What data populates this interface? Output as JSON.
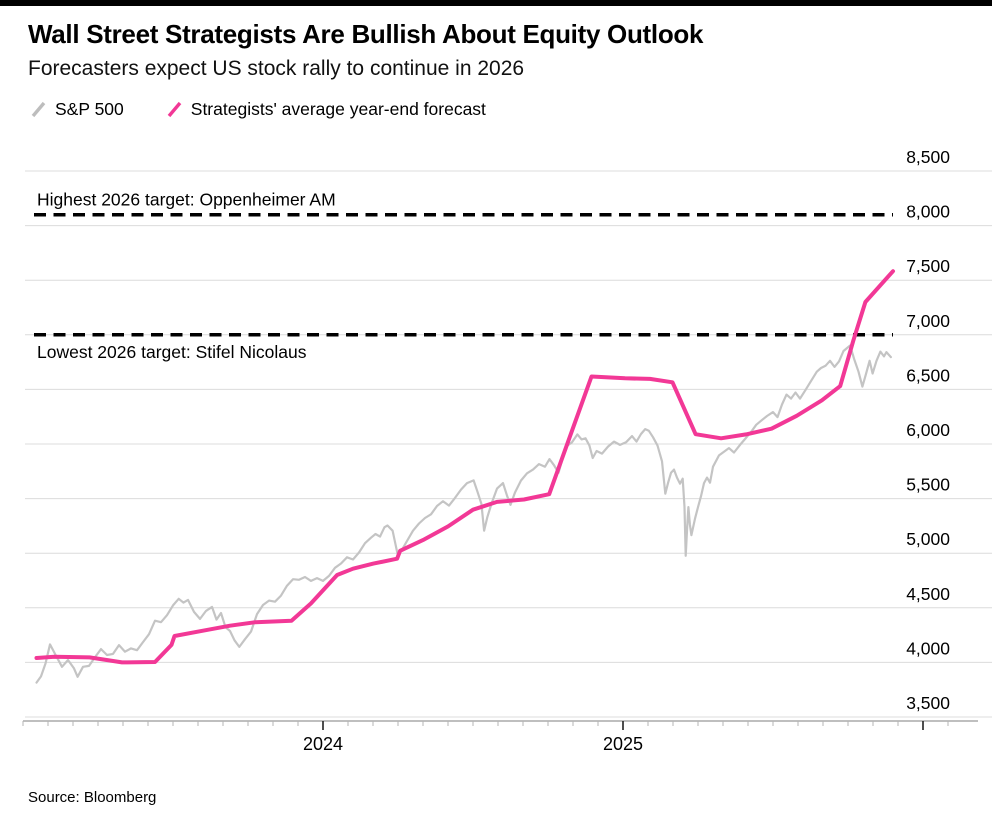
{
  "header": {
    "title": "Wall Street Strategists Are Bullish About Equity Outlook",
    "subtitle": "Forecasters expect US stock rally to continue in 2026"
  },
  "legend": [
    {
      "label": "S&P 500",
      "color": "#bdbdbd"
    },
    {
      "label": "Strategists' average year-end forecast",
      "color": "#f23896"
    }
  ],
  "source": "Source: Bloomberg",
  "colors": {
    "background": "#ffffff",
    "grid": "#dcdcdc",
    "axis": "#999999",
    "minor_tick": "#b5b5b5",
    "major_tick": "#222222",
    "annotation_line": "#000000",
    "sp500_line": "#c4c4c4",
    "forecast_line": "#f23896",
    "top_rule": "#000000"
  },
  "chart_data": {
    "type": "line",
    "title": "Wall Street Strategists Are Bullish About Equity Outlook",
    "subtitle": "Forecasters expect US stock rally to continue in 2026",
    "grid": true,
    "legend_position": "top-left",
    "y_axis": {
      "side": "right",
      "min": 3500,
      "max": 8500,
      "step": 500,
      "tick_labels": [
        "3,500",
        "4,000",
        "4,500",
        "5,000",
        "5,500",
        "6,000",
        "6,500",
        "7,000",
        "7,500",
        "8,000",
        "8,500"
      ]
    },
    "x_axis": {
      "unit": "decimal_year",
      "start": 2023.045,
      "end": 2025.9,
      "minor_tick": "monthly",
      "ticks": [
        {
          "year": 2024,
          "label": "2024"
        },
        {
          "year": 2025,
          "label": "2025"
        }
      ]
    },
    "annotations": [
      {
        "label": "Highest 2026 target: Oppenheimer AM",
        "value": 8100,
        "style": "dashed",
        "label_side": "above"
      },
      {
        "label": "Lowest 2026 target: Stifel Nicolaus",
        "value": 7000,
        "style": "dashed",
        "label_side": "below"
      }
    ],
    "series": [
      {
        "name": "S&P 500",
        "color": "#c4c4c4",
        "width": 2.2,
        "points": [
          [
            2023.045,
            3815
          ],
          [
            2023.06,
            3872
          ],
          [
            2023.075,
            3990
          ],
          [
            2023.09,
            4165
          ],
          [
            2023.11,
            4060
          ],
          [
            2023.13,
            3960
          ],
          [
            2023.15,
            4022
          ],
          [
            2023.17,
            3945
          ],
          [
            2023.182,
            3868
          ],
          [
            2023.2,
            3960
          ],
          [
            2023.22,
            3968
          ],
          [
            2023.24,
            4048
          ],
          [
            2023.26,
            4122
          ],
          [
            2023.28,
            4068
          ],
          [
            2023.3,
            4078
          ],
          [
            2023.32,
            4158
          ],
          [
            2023.34,
            4098
          ],
          [
            2023.36,
            4128
          ],
          [
            2023.38,
            4112
          ],
          [
            2023.4,
            4186
          ],
          [
            2023.42,
            4258
          ],
          [
            2023.44,
            4382
          ],
          [
            2023.46,
            4368
          ],
          [
            2023.48,
            4432
          ],
          [
            2023.5,
            4522
          ],
          [
            2023.519,
            4582
          ],
          [
            2023.535,
            4548
          ],
          [
            2023.55,
            4572
          ],
          [
            2023.57,
            4462
          ],
          [
            2023.59,
            4398
          ],
          [
            2023.61,
            4472
          ],
          [
            2023.63,
            4508
          ],
          [
            2023.645,
            4392
          ],
          [
            2023.66,
            4452
          ],
          [
            2023.675,
            4322
          ],
          [
            2023.69,
            4288
          ],
          [
            2023.705,
            4202
          ],
          [
            2023.721,
            4142
          ],
          [
            2023.74,
            4212
          ],
          [
            2023.76,
            4282
          ],
          [
            2023.78,
            4442
          ],
          [
            2023.8,
            4526
          ],
          [
            2023.82,
            4566
          ],
          [
            2023.84,
            4556
          ],
          [
            2023.86,
            4612
          ],
          [
            2023.88,
            4702
          ],
          [
            2023.9,
            4762
          ],
          [
            2023.92,
            4756
          ],
          [
            2023.94,
            4782
          ],
          [
            2023.96,
            4746
          ],
          [
            2023.98,
            4772
          ],
          [
            2024.0,
            4746
          ],
          [
            2024.02,
            4792
          ],
          [
            2024.04,
            4866
          ],
          [
            2024.06,
            4906
          ],
          [
            2024.08,
            4962
          ],
          [
            2024.1,
            4942
          ],
          [
            2024.12,
            5006
          ],
          [
            2024.14,
            5092
          ],
          [
            2024.16,
            5142
          ],
          [
            2024.175,
            5176
          ],
          [
            2024.19,
            5152
          ],
          [
            2024.205,
            5238
          ],
          [
            2024.215,
            5254
          ],
          [
            2024.232,
            5206
          ],
          [
            2024.249,
            4986
          ],
          [
            2024.262,
            5026
          ],
          [
            2024.28,
            5112
          ],
          [
            2024.3,
            5206
          ],
          [
            2024.32,
            5272
          ],
          [
            2024.34,
            5322
          ],
          [
            2024.36,
            5356
          ],
          [
            2024.38,
            5432
          ],
          [
            2024.4,
            5476
          ],
          [
            2024.42,
            5436
          ],
          [
            2024.44,
            5506
          ],
          [
            2024.46,
            5582
          ],
          [
            2024.48,
            5642
          ],
          [
            2024.502,
            5667
          ],
          [
            2024.515,
            5562
          ],
          [
            2024.528,
            5452
          ],
          [
            2024.537,
            5206
          ],
          [
            2024.548,
            5332
          ],
          [
            2024.562,
            5456
          ],
          [
            2024.58,
            5592
          ],
          [
            2024.6,
            5642
          ],
          [
            2024.614,
            5522
          ],
          [
            2024.625,
            5442
          ],
          [
            2024.64,
            5556
          ],
          [
            2024.66,
            5666
          ],
          [
            2024.68,
            5732
          ],
          [
            2024.7,
            5766
          ],
          [
            2024.72,
            5816
          ],
          [
            2024.74,
            5792
          ],
          [
            2024.755,
            5862
          ],
          [
            2024.77,
            5806
          ],
          [
            2024.785,
            5736
          ],
          [
            2024.8,
            5882
          ],
          [
            2024.815,
            5986
          ],
          [
            2024.83,
            6016
          ],
          [
            2024.848,
            6088
          ],
          [
            2024.862,
            6042
          ],
          [
            2024.875,
            6052
          ],
          [
            2024.888,
            5986
          ],
          [
            2024.899,
            5872
          ],
          [
            2024.912,
            5936
          ],
          [
            2024.93,
            5912
          ],
          [
            2024.95,
            5976
          ],
          [
            2024.97,
            6022
          ],
          [
            2024.99,
            5992
          ],
          [
            2025.01,
            6016
          ],
          [
            2025.03,
            6072
          ],
          [
            2025.045,
            6022
          ],
          [
            2025.06,
            6092
          ],
          [
            2025.074,
            6136
          ],
          [
            2025.086,
            6122
          ],
          [
            2025.1,
            6062
          ],
          [
            2025.115,
            5986
          ],
          [
            2025.13,
            5842
          ],
          [
            2025.141,
            5545
          ],
          [
            2025.15,
            5642
          ],
          [
            2025.16,
            5736
          ],
          [
            2025.17,
            5766
          ],
          [
            2025.18,
            5692
          ],
          [
            2025.19,
            5636
          ],
          [
            2025.199,
            5682
          ],
          [
            2025.205,
            5422
          ],
          [
            2025.209,
            4976
          ],
          [
            2025.214,
            5242
          ],
          [
            2025.218,
            5422
          ],
          [
            2025.223,
            5262
          ],
          [
            2025.228,
            5166
          ],
          [
            2025.24,
            5316
          ],
          [
            2025.25,
            5422
          ],
          [
            2025.26,
            5522
          ],
          [
            2025.27,
            5642
          ],
          [
            2025.28,
            5692
          ],
          [
            2025.29,
            5646
          ],
          [
            2025.3,
            5792
          ],
          [
            2025.32,
            5896
          ],
          [
            2025.34,
            5936
          ],
          [
            2025.353,
            5962
          ],
          [
            2025.37,
            5922
          ],
          [
            2025.39,
            5992
          ],
          [
            2025.41,
            6056
          ],
          [
            2025.43,
            6122
          ],
          [
            2025.444,
            6176
          ],
          [
            2025.46,
            6212
          ],
          [
            2025.48,
            6256
          ],
          [
            2025.5,
            6292
          ],
          [
            2025.515,
            6246
          ],
          [
            2025.53,
            6362
          ],
          [
            2025.545,
            6452
          ],
          [
            2025.56,
            6416
          ],
          [
            2025.575,
            6472
          ],
          [
            2025.59,
            6416
          ],
          [
            2025.61,
            6502
          ],
          [
            2025.63,
            6592
          ],
          [
            2025.646,
            6662
          ],
          [
            2025.66,
            6696
          ],
          [
            2025.675,
            6716
          ],
          [
            2025.69,
            6762
          ],
          [
            2025.705,
            6706
          ],
          [
            2025.72,
            6756
          ],
          [
            2025.735,
            6852
          ],
          [
            2025.757,
            6902
          ],
          [
            2025.77,
            6782
          ],
          [
            2025.785,
            6662
          ],
          [
            2025.798,
            6526
          ],
          [
            2025.81,
            6642
          ],
          [
            2025.822,
            6762
          ],
          [
            2025.832,
            6646
          ],
          [
            2025.845,
            6762
          ],
          [
            2025.858,
            6846
          ],
          [
            2025.87,
            6802
          ],
          [
            2025.878,
            6842
          ],
          [
            2025.893,
            6796
          ]
        ]
      },
      {
        "name": "Strategists' average year-end forecast",
        "color": "#f23896",
        "width": 4,
        "points": [
          [
            2023.045,
            4040
          ],
          [
            2023.105,
            4052
          ],
          [
            2023.222,
            4046
          ],
          [
            2023.33,
            4000
          ],
          [
            2023.44,
            4004
          ],
          [
            2023.495,
            4160
          ],
          [
            2023.505,
            4242
          ],
          [
            2023.6,
            4290
          ],
          [
            2023.69,
            4336
          ],
          [
            2023.775,
            4368
          ],
          [
            2023.895,
            4382
          ],
          [
            2023.96,
            4540
          ],
          [
            2024.047,
            4800
          ],
          [
            2024.1,
            4858
          ],
          [
            2024.168,
            4905
          ],
          [
            2024.247,
            4950
          ],
          [
            2024.257,
            5022
          ],
          [
            2024.333,
            5120
          ],
          [
            2024.417,
            5245
          ],
          [
            2024.5,
            5398
          ],
          [
            2024.58,
            5470
          ],
          [
            2024.67,
            5492
          ],
          [
            2024.754,
            5540
          ],
          [
            2024.895,
            6618
          ],
          [
            2025.007,
            6602
          ],
          [
            2025.09,
            6596
          ],
          [
            2025.165,
            6565
          ],
          [
            2025.242,
            6090
          ],
          [
            2025.327,
            6052
          ],
          [
            2025.41,
            6088
          ],
          [
            2025.495,
            6140
          ],
          [
            2025.579,
            6258
          ],
          [
            2025.663,
            6400
          ],
          [
            2025.724,
            6530
          ],
          [
            2025.768,
            6950
          ],
          [
            2025.808,
            7300
          ],
          [
            2025.9,
            7582
          ]
        ]
      }
    ]
  }
}
